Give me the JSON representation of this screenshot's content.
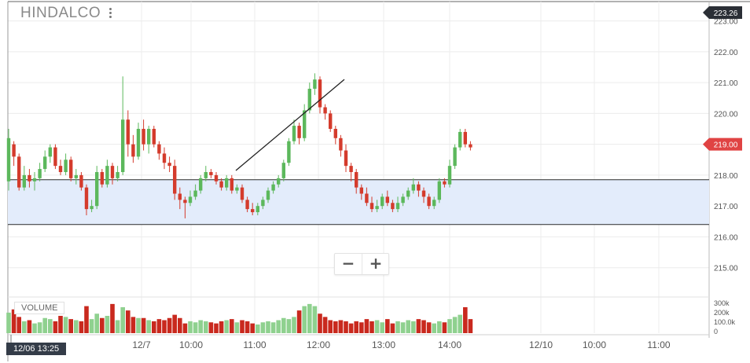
{
  "header": {
    "symbol": "HINDALCO"
  },
  "price_axis": {
    "last_price_badge": "223.26",
    "current_price_badge": "219.00",
    "badge_colors": {
      "last": "#2b2f36",
      "current": "#e04343"
    }
  },
  "volume_label": "VOLUME",
  "crosshair_time": "12/06 13:25",
  "zoom": {
    "minus_icon": "minus-icon",
    "plus_icon": "plus-icon"
  },
  "colors": {
    "up": "#5cb85c",
    "down": "#d43b2c",
    "volume_up": "#8fd18f",
    "volume_down": "#c9291e",
    "band_fill": "#e3ecfb",
    "grid": "#ececec"
  },
  "chart_data": {
    "type": "candlestick",
    "price_ticks": [
      "223.00",
      "222.00",
      "221.00",
      "220.00",
      "219.00",
      "218.00",
      "217.00",
      "216.00",
      "215.00"
    ],
    "volume_ticks": [
      "300k",
      "200k",
      "100.0k",
      "0"
    ],
    "x_ticks": [
      "12/7",
      "10:00",
      "11:00",
      "12:00",
      "13:00",
      "14:00",
      "12/10",
      "10:00",
      "11:00"
    ],
    "ylim": [
      214.0,
      223.6
    ],
    "volume_max": 320000,
    "band": {
      "upper": 217.85,
      "lower": 216.4
    },
    "trendline": {
      "from": [
        6,
        218.15
      ],
      "to": [
        13,
        221.1
      ]
    },
    "candles": [
      [
        217.8,
        219.2,
        219.5,
        217.5,
        190000
      ],
      [
        219.0,
        218.6,
        219.1,
        218.3,
        220000
      ],
      [
        218.6,
        217.6,
        218.7,
        217.5,
        150000
      ],
      [
        217.6,
        218.0,
        218.3,
        217.5,
        110000
      ],
      [
        218.0,
        217.8,
        218.2,
        217.6,
        120000
      ],
      [
        217.8,
        217.9,
        218.1,
        217.5,
        90000
      ],
      [
        217.9,
        218.2,
        218.4,
        217.8,
        100000
      ],
      [
        218.2,
        218.6,
        218.8,
        218.1,
        140000
      ],
      [
        218.6,
        218.9,
        219.0,
        218.4,
        130000
      ],
      [
        218.9,
        218.3,
        219.0,
        218.2,
        110000
      ],
      [
        218.3,
        218.1,
        218.5,
        218.0,
        160000
      ],
      [
        218.1,
        218.5,
        218.7,
        218.0,
        150000
      ],
      [
        218.5,
        217.9,
        218.6,
        217.8,
        130000
      ],
      [
        217.9,
        218.0,
        218.2,
        217.7,
        120000
      ],
      [
        218.0,
        217.6,
        218.1,
        217.5,
        110000
      ],
      [
        217.6,
        216.9,
        217.7,
        216.7,
        250000
      ],
      [
        216.9,
        217.0,
        217.2,
        216.8,
        130000
      ],
      [
        217.0,
        218.1,
        218.3,
        216.9,
        180000
      ],
      [
        218.1,
        217.7,
        218.2,
        217.6,
        140000
      ],
      [
        217.7,
        218.3,
        218.5,
        217.6,
        160000
      ],
      [
        218.3,
        217.9,
        218.4,
        217.7,
        270000
      ],
      [
        217.9,
        218.1,
        218.3,
        217.8,
        120000
      ],
      [
        218.1,
        219.8,
        221.2,
        218.0,
        240000
      ],
      [
        219.8,
        219.0,
        220.1,
        218.6,
        210000
      ],
      [
        219.0,
        218.6,
        219.3,
        218.4,
        150000
      ],
      [
        218.6,
        219.5,
        219.7,
        218.5,
        140000
      ],
      [
        219.5,
        219.0,
        219.8,
        218.8,
        140000
      ],
      [
        219.0,
        219.5,
        219.6,
        218.7,
        120000
      ],
      [
        219.5,
        219.0,
        219.6,
        218.9,
        110000
      ],
      [
        219.0,
        218.7,
        219.1,
        218.5,
        130000
      ],
      [
        218.7,
        218.4,
        218.9,
        218.2,
        120000
      ],
      [
        218.4,
        218.3,
        218.6,
        218.1,
        140000
      ],
      [
        218.3,
        217.4,
        218.5,
        217.2,
        170000
      ],
      [
        217.4,
        217.2,
        217.6,
        216.9,
        140000
      ],
      [
        217.2,
        217.1,
        217.3,
        216.6,
        90000
      ],
      [
        217.1,
        217.3,
        217.5,
        217.0,
        110000
      ],
      [
        217.3,
        217.5,
        217.7,
        217.2,
        100000
      ],
      [
        217.5,
        217.9,
        218.0,
        217.4,
        120000
      ],
      [
        217.9,
        218.1,
        218.3,
        217.8,
        110000
      ],
      [
        218.1,
        218.0,
        218.2,
        217.9,
        100000
      ],
      [
        218.0,
        217.8,
        218.1,
        217.7,
        90000
      ],
      [
        217.8,
        217.6,
        217.9,
        217.5,
        110000
      ],
      [
        217.6,
        217.9,
        218.0,
        217.5,
        120000
      ],
      [
        217.9,
        217.5,
        218.0,
        217.4,
        130000
      ],
      [
        217.5,
        217.6,
        217.7,
        217.4,
        100000
      ],
      [
        217.6,
        217.2,
        217.7,
        217.1,
        120000
      ],
      [
        217.2,
        216.9,
        217.3,
        216.8,
        110000
      ],
      [
        216.9,
        216.8,
        217.1,
        216.7,
        90000
      ],
      [
        216.8,
        217.0,
        217.1,
        216.7,
        80000
      ],
      [
        217.0,
        217.2,
        217.3,
        216.9,
        100000
      ],
      [
        217.2,
        217.5,
        217.6,
        217.1,
        110000
      ],
      [
        217.5,
        217.7,
        217.8,
        217.4,
        100000
      ],
      [
        217.7,
        217.9,
        218.0,
        217.6,
        120000
      ],
      [
        217.9,
        218.4,
        218.5,
        217.8,
        140000
      ],
      [
        218.4,
        219.1,
        219.2,
        218.3,
        130000
      ],
      [
        219.1,
        219.6,
        219.8,
        219.0,
        150000
      ],
      [
        219.6,
        219.2,
        219.7,
        219.0,
        210000
      ],
      [
        219.2,
        220.1,
        220.3,
        219.1,
        250000
      ],
      [
        220.1,
        220.8,
        221.0,
        220.0,
        270000
      ],
      [
        220.8,
        221.1,
        221.3,
        220.6,
        250000
      ],
      [
        221.1,
        220.2,
        221.2,
        220.0,
        180000
      ],
      [
        220.2,
        220.0,
        220.3,
        219.8,
        150000
      ],
      [
        220.0,
        219.5,
        220.1,
        219.4,
        120000
      ],
      [
        219.5,
        219.2,
        219.6,
        219.0,
        110000
      ],
      [
        219.2,
        218.8,
        219.3,
        218.6,
        120000
      ],
      [
        218.8,
        218.3,
        219.0,
        218.1,
        110000
      ],
      [
        218.3,
        218.1,
        218.4,
        217.8,
        90000
      ],
      [
        218.1,
        217.6,
        218.2,
        217.4,
        110000
      ],
      [
        217.6,
        217.4,
        217.7,
        217.2,
        100000
      ],
      [
        217.4,
        217.1,
        217.6,
        217.0,
        130000
      ],
      [
        217.1,
        216.9,
        217.3,
        216.8,
        110000
      ],
      [
        216.9,
        217.0,
        217.2,
        216.8,
        120000
      ],
      [
        217.0,
        217.3,
        217.4,
        216.9,
        100000
      ],
      [
        217.3,
        217.1,
        217.5,
        217.0,
        130000
      ],
      [
        217.1,
        216.9,
        217.2,
        216.8,
        90000
      ],
      [
        216.9,
        217.1,
        217.3,
        216.8,
        110000
      ],
      [
        217.1,
        217.3,
        217.4,
        217.0,
        100000
      ],
      [
        217.3,
        217.5,
        217.6,
        217.2,
        120000
      ],
      [
        217.5,
        217.7,
        217.9,
        217.4,
        110000
      ],
      [
        217.7,
        217.5,
        217.8,
        217.3,
        130000
      ],
      [
        217.5,
        217.3,
        217.6,
        217.1,
        120000
      ],
      [
        217.3,
        217.0,
        217.4,
        216.9,
        100000
      ],
      [
        217.0,
        217.2,
        217.3,
        216.9,
        90000
      ],
      [
        217.2,
        217.8,
        217.9,
        217.1,
        110000
      ],
      [
        217.8,
        217.7,
        217.9,
        217.6,
        100000
      ],
      [
        217.7,
        218.3,
        218.5,
        217.6,
        130000
      ],
      [
        218.3,
        218.9,
        219.0,
        218.2,
        150000
      ],
      [
        218.9,
        219.4,
        219.5,
        218.8,
        170000
      ],
      [
        219.4,
        219.0,
        219.5,
        218.9,
        240000
      ],
      [
        219.0,
        218.9,
        219.1,
        218.8,
        130000
      ]
    ]
  }
}
